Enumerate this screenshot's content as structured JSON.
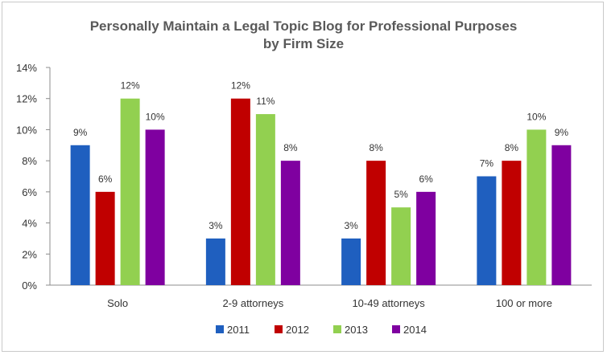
{
  "chart_data": {
    "type": "bar",
    "title": "Personally Maintain a Legal Topic Blog for Professional Purposes",
    "subtitle": "by Firm Size",
    "categories": [
      "Solo",
      "2-9 attorneys",
      "10-49 attorneys",
      "100 or more"
    ],
    "series": [
      {
        "name": "2011",
        "color": "#1f5fbf",
        "values": [
          9,
          3,
          3,
          7
        ]
      },
      {
        "name": "2012",
        "color": "#c00000",
        "values": [
          6,
          12,
          8,
          8
        ]
      },
      {
        "name": "2013",
        "color": "#92d050",
        "values": [
          12,
          11,
          5,
          10
        ]
      },
      {
        "name": "2014",
        "color": "#7f00a0",
        "values": [
          10,
          8,
          6,
          9
        ]
      }
    ],
    "data_labels": [
      [
        "9%",
        "3%",
        "3%",
        "7%"
      ],
      [
        "6%",
        "12%",
        "8%",
        "8%"
      ],
      [
        "12%",
        "11%",
        "5%",
        "10%"
      ],
      [
        "10%",
        "8%",
        "6%",
        "9%"
      ]
    ],
    "y_ticks": [
      "0%",
      "2%",
      "4%",
      "6%",
      "8%",
      "10%",
      "12%",
      "14%"
    ],
    "ylim": [
      0,
      14
    ],
    "grid": false,
    "legend": "bottom",
    "xlabel": "",
    "ylabel": ""
  }
}
